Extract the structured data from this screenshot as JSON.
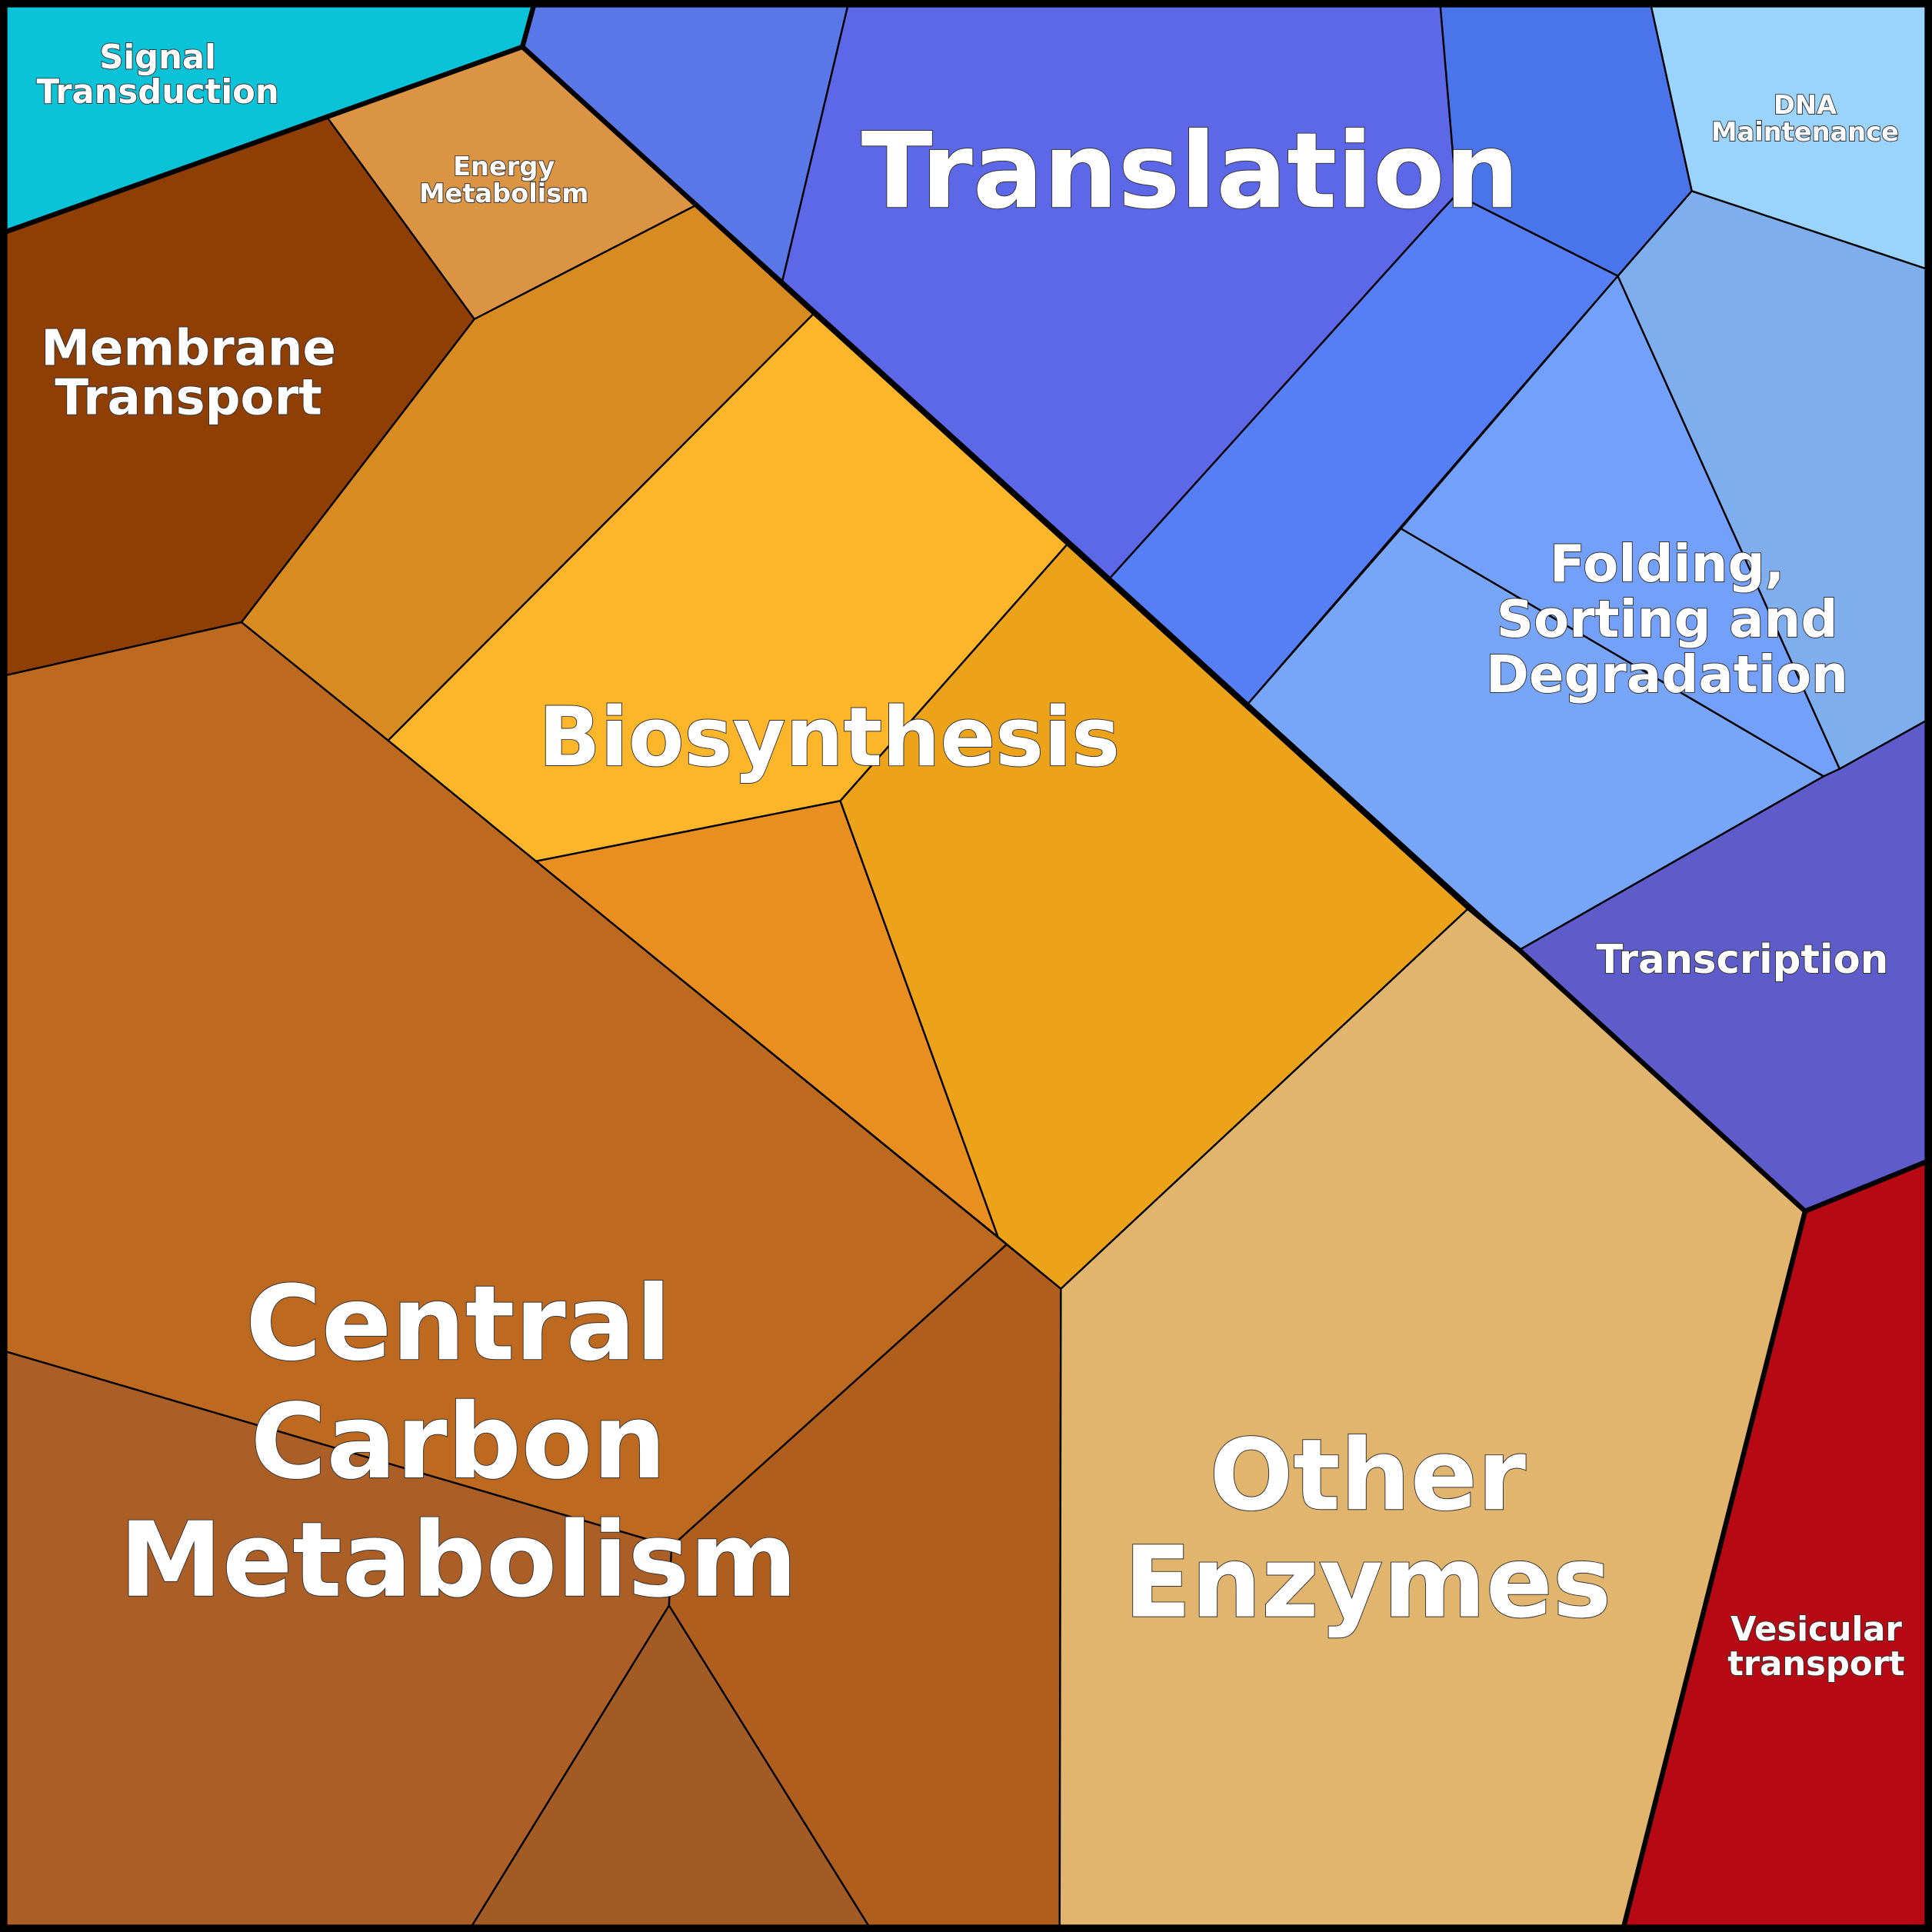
{
  "labels": {
    "signal": [
      "Signal",
      "Transduction"
    ],
    "energy": [
      "Energy",
      "Metabolism"
    ],
    "membrane": [
      "Membrane",
      "Transport"
    ],
    "translation": [
      "Translation"
    ],
    "dna": [
      "DNA",
      "Maintenance"
    ],
    "biosynthesis": [
      "Biosynthesis"
    ],
    "folding": [
      "Folding,",
      "Sorting and",
      "Degradation"
    ],
    "transcription": [
      "Transcription"
    ],
    "central": [
      "Central",
      "Carbon",
      "Metabolism"
    ],
    "other": [
      "Other",
      "Enzymes"
    ],
    "vesicular": [
      "Vesicular",
      "transport"
    ]
  }
}
